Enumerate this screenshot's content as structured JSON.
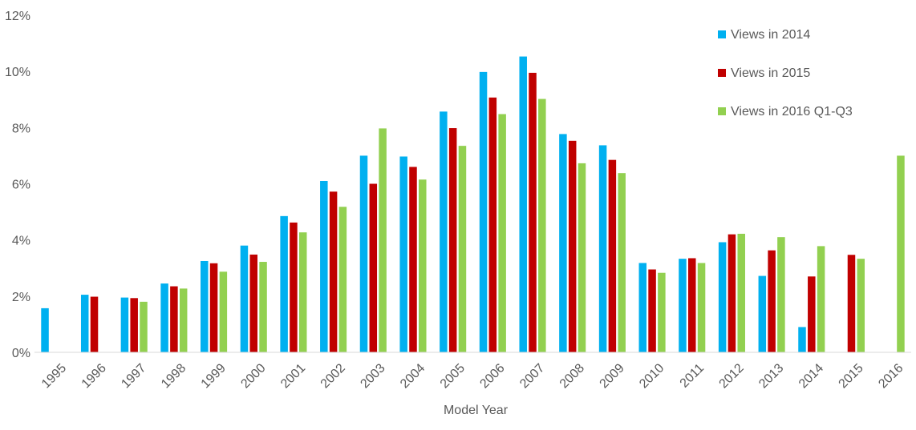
{
  "chart_data": {
    "type": "bar",
    "title": "",
    "xlabel": "Model Year",
    "ylabel": "",
    "ylim": [
      0,
      12
    ],
    "y_ticks": [
      "0%",
      "2%",
      "4%",
      "6%",
      "8%",
      "10%",
      "12%"
    ],
    "y_tick_values": [
      0,
      2,
      4,
      6,
      8,
      10,
      12
    ],
    "categories": [
      "1995",
      "1996",
      "1997",
      "1998",
      "1999",
      "2000",
      "2001",
      "2002",
      "2003",
      "2004",
      "2005",
      "2006",
      "2007",
      "2008",
      "2009",
      "2010",
      "2011",
      "2012",
      "2013",
      "2014",
      "2015",
      "2016"
    ],
    "legend_position": "top-right",
    "grid": false,
    "series": [
      {
        "name": "Views in 2014",
        "color": "#00B0F0",
        "values": [
          1.57,
          2.05,
          1.95,
          2.45,
          3.25,
          3.8,
          4.85,
          6.1,
          7.0,
          6.97,
          8.57,
          9.98,
          10.53,
          7.77,
          7.37,
          3.18,
          3.33,
          3.92,
          2.72,
          0.9,
          0,
          0
        ]
      },
      {
        "name": "Views in 2015",
        "color": "#C00000",
        "values": [
          0,
          1.98,
          1.93,
          2.35,
          3.17,
          3.48,
          4.62,
          5.72,
          6.0,
          6.6,
          7.98,
          9.07,
          9.95,
          7.53,
          6.85,
          2.95,
          3.35,
          4.2,
          3.63,
          2.7,
          3.47,
          0
        ]
      },
      {
        "name": "Views in 2016 Q1-Q3",
        "color": "#92D050",
        "values": [
          0,
          0,
          1.8,
          2.27,
          2.87,
          3.22,
          4.27,
          5.18,
          7.97,
          6.15,
          7.35,
          8.48,
          9.02,
          6.73,
          6.38,
          2.83,
          3.18,
          4.22,
          4.1,
          3.78,
          3.33,
          7.0
        ]
      }
    ]
  }
}
